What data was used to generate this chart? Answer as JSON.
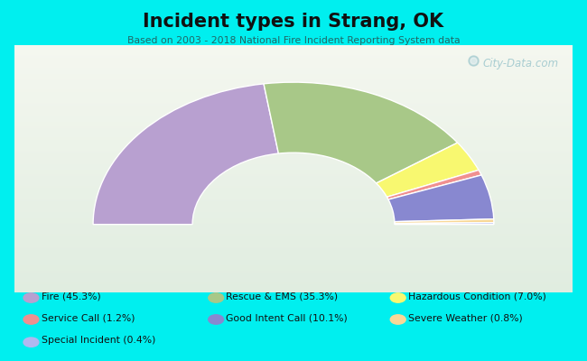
{
  "title": "Incident types in Strang, OK",
  "subtitle": "Based on 2003 - 2018 National Fire Incident Reporting System data",
  "bg_color": "#00EFEF",
  "chart_bg_top": "#d8ede0",
  "chart_bg_bot": "#e8f5ec",
  "segments": [
    {
      "label": "Fire (45.3%)",
      "value": 45.3,
      "color": "#b8a0d0"
    },
    {
      "label": "Rescue & EMS (35.3%)",
      "value": 35.3,
      "color": "#a8c888"
    },
    {
      "label": "Hazardous Condition (7.0%)",
      "value": 7.0,
      "color": "#f8f870"
    },
    {
      "label": "Service Call (1.2%)",
      "value": 1.2,
      "color": "#f09090"
    },
    {
      "label": "Good Intent Call (10.1%)",
      "value": 10.1,
      "color": "#8888d0"
    },
    {
      "label": "Severe Weather (0.8%)",
      "value": 0.8,
      "color": "#f8d898"
    },
    {
      "label": "Special Incident (0.4%)",
      "value": 0.4,
      "color": "#b0b8f0"
    }
  ],
  "legend_items": [
    {
      "label": "Fire (45.3%)",
      "color": "#b8a0d0"
    },
    {
      "label": "Service Call (1.2%)",
      "color": "#f09090"
    },
    {
      "label": "Special Incident (0.4%)",
      "color": "#b0b8f0"
    },
    {
      "label": "Rescue & EMS (35.3%)",
      "color": "#a8c888"
    },
    {
      "label": "Good Intent Call (10.1%)",
      "color": "#8888d0"
    },
    {
      "label": "Hazardous Condition (7.0%)",
      "color": "#f8f870"
    },
    {
      "label": "Severe Weather (0.8%)",
      "color": "#f8d898"
    }
  ],
  "watermark": "City-Data.com",
  "outer_r": 1.15,
  "inner_r": 0.58
}
